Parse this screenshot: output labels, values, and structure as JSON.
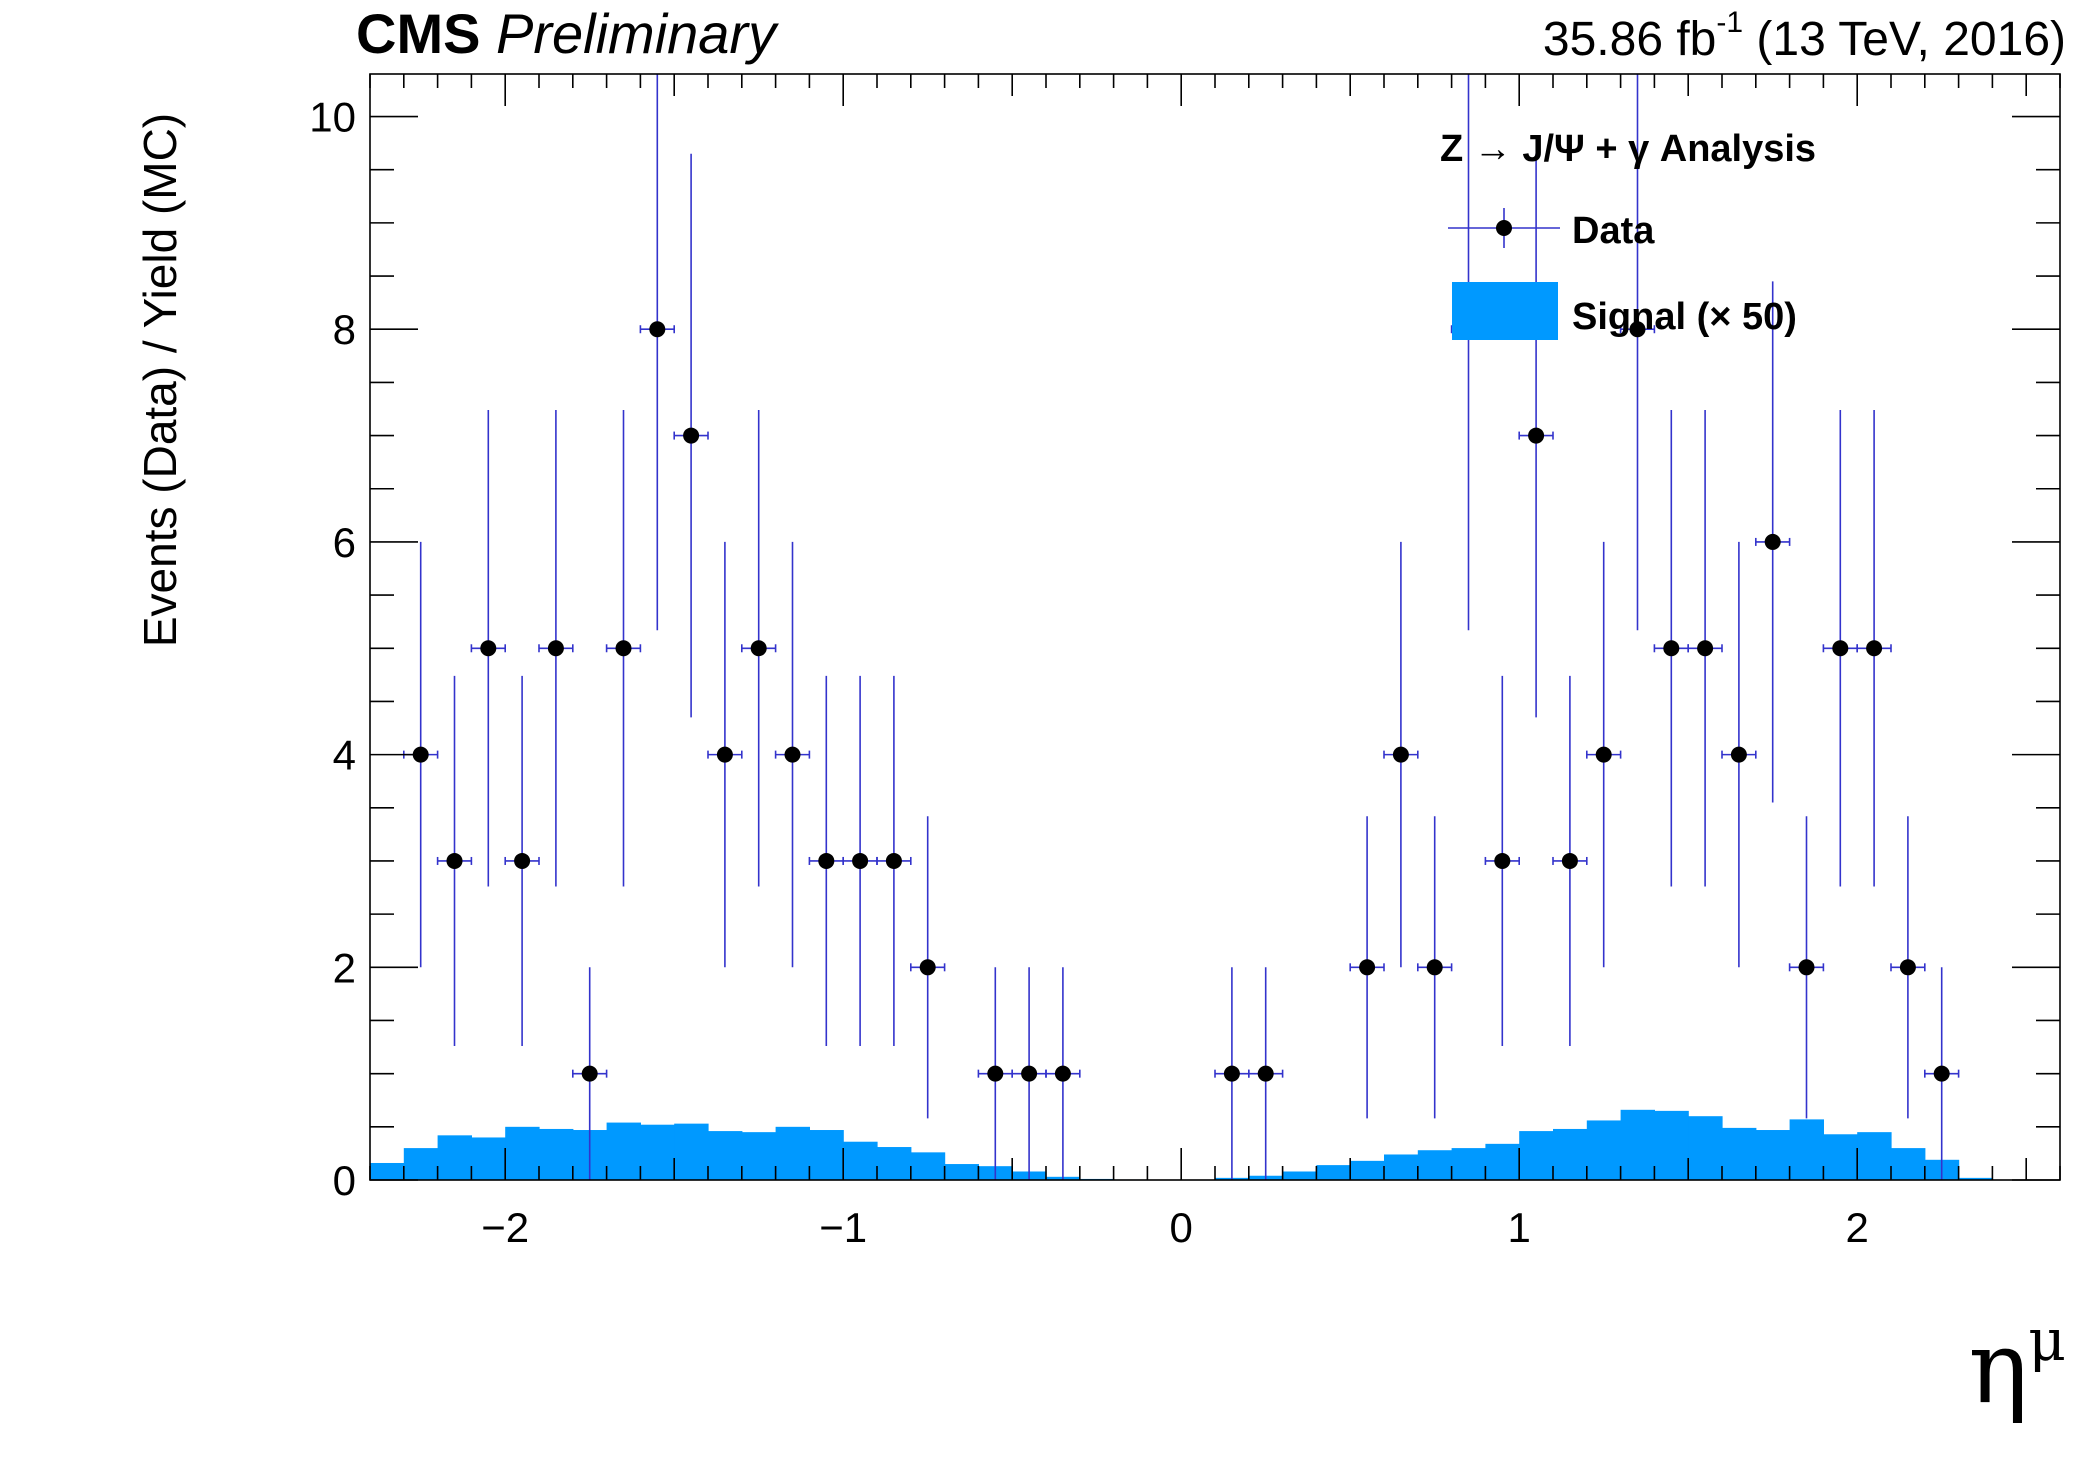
{
  "header": {
    "experiment": "CMS",
    "status": "Preliminary",
    "lumi_value": "35.86 fb",
    "lumi_exponent": "-1",
    "lumi_conditions": "(13 TeV, 2016)"
  },
  "legend": {
    "title": "Z → J/Ψ + γ Analysis",
    "data_label": "Data",
    "signal_label": "Signal (× 50)"
  },
  "colors": {
    "signal_fill": "#0099FF",
    "data_marker": "#000000",
    "error_bar": "#3333CC"
  },
  "chart_data": {
    "type": "scatter",
    "title": "",
    "xlabel": "η",
    "xlabel_superscript": "μ",
    "ylabel": "Events (Data) / Yield (MC)",
    "xlim": [
      -2.4,
      2.6
    ],
    "ylim": [
      0,
      10.4
    ],
    "x_ticks": [
      -2,
      -1,
      0,
      1,
      2
    ],
    "x_tick_labels": [
      "−2",
      "−1",
      "0",
      "1",
      "2"
    ],
    "y_ticks": [
      0,
      2,
      4,
      6,
      8,
      10
    ],
    "y_tick_labels": [
      "0",
      "2",
      "4",
      "6",
      "8",
      "10"
    ],
    "grid": false,
    "legend_position": "top-right",
    "series": [
      {
        "name": "Data",
        "kind": "points_with_errors",
        "bin_half_width": 0.05,
        "x": [
          -2.25,
          -2.15,
          -2.05,
          -1.95,
          -1.85,
          -1.75,
          -1.65,
          -1.55,
          -1.45,
          -1.35,
          -1.25,
          -1.15,
          -1.05,
          -0.95,
          -0.85,
          -0.75,
          -0.55,
          -0.45,
          -0.35,
          0.15,
          0.25,
          0.55,
          0.65,
          0.75,
          0.85,
          0.95,
          1.05,
          1.15,
          1.25,
          1.35,
          1.45,
          1.55,
          1.65,
          1.75,
          1.85,
          1.95,
          2.05,
          2.15,
          2.25
        ],
        "y": [
          4,
          3,
          5,
          3,
          5,
          1,
          5,
          8,
          7,
          4,
          5,
          4,
          3,
          3,
          3,
          2,
          1,
          1,
          1,
          1,
          1,
          2,
          4,
          2,
          8,
          3,
          7,
          3,
          4,
          8,
          5,
          5,
          4,
          6,
          2,
          5,
          5,
          2,
          1
        ],
        "y_err_low": [
          2.0,
          1.74,
          2.24,
          1.74,
          2.24,
          1.0,
          2.24,
          2.83,
          2.65,
          2.0,
          2.24,
          2.0,
          1.74,
          1.74,
          1.74,
          1.42,
          1.0,
          1.0,
          1.0,
          1.0,
          1.0,
          1.42,
          2.0,
          1.42,
          2.83,
          1.74,
          2.65,
          1.74,
          2.0,
          2.83,
          2.24,
          2.24,
          2.0,
          2.45,
          1.42,
          2.24,
          2.24,
          1.42,
          1.0
        ],
        "y_err_high": [
          2.0,
          1.74,
          2.24,
          1.74,
          2.24,
          1.0,
          2.24,
          2.83,
          2.65,
          2.0,
          2.24,
          2.0,
          1.74,
          1.74,
          1.74,
          1.42,
          1.0,
          1.0,
          1.0,
          1.0,
          1.0,
          1.42,
          2.0,
          1.42,
          2.83,
          1.74,
          2.65,
          1.74,
          2.0,
          2.83,
          2.24,
          2.24,
          2.0,
          2.45,
          1.42,
          2.24,
          2.24,
          1.42,
          1.0
        ]
      },
      {
        "name": "Signal (× 50)",
        "kind": "filled_histogram",
        "bin_edges": [
          -2.4,
          -2.3,
          -2.2,
          -2.1,
          -2.0,
          -1.9,
          -1.8,
          -1.7,
          -1.6,
          -1.5,
          -1.4,
          -1.3,
          -1.2,
          -1.1,
          -1.0,
          -0.9,
          -0.8,
          -0.7,
          -0.6,
          -0.5,
          -0.4,
          -0.3,
          -0.2,
          -0.1,
          0.0,
          0.1,
          0.2,
          0.3,
          0.4,
          0.5,
          0.6,
          0.7,
          0.8,
          0.9,
          1.0,
          1.1,
          1.2,
          1.3,
          1.4,
          1.5,
          1.6,
          1.7,
          1.8,
          1.9,
          2.0,
          2.1,
          2.2,
          2.3,
          2.4,
          2.5
        ],
        "values": [
          0.16,
          0.3,
          0.42,
          0.4,
          0.5,
          0.48,
          0.47,
          0.54,
          0.52,
          0.53,
          0.46,
          0.45,
          0.5,
          0.47,
          0.36,
          0.31,
          0.26,
          0.15,
          0.13,
          0.08,
          0.03,
          0.01,
          0.005,
          0.0,
          0.0,
          0.02,
          0.04,
          0.08,
          0.14,
          0.18,
          0.24,
          0.28,
          0.3,
          0.34,
          0.46,
          0.48,
          0.56,
          0.66,
          0.65,
          0.6,
          0.49,
          0.47,
          0.57,
          0.43,
          0.45,
          0.3,
          0.19,
          0.02,
          0.0
        ]
      }
    ]
  }
}
